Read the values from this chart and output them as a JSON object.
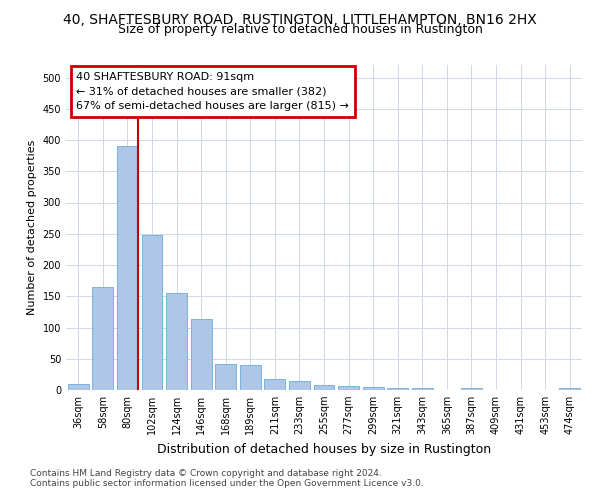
{
  "title": "40, SHAFTESBURY ROAD, RUSTINGTON, LITTLEHAMPTON, BN16 2HX",
  "subtitle": "Size of property relative to detached houses in Rustington",
  "xlabel": "Distribution of detached houses by size in Rustington",
  "ylabel": "Number of detached properties",
  "categories": [
    "36sqm",
    "58sqm",
    "80sqm",
    "102sqm",
    "124sqm",
    "146sqm",
    "168sqm",
    "189sqm",
    "211sqm",
    "233sqm",
    "255sqm",
    "277sqm",
    "299sqm",
    "321sqm",
    "343sqm",
    "365sqm",
    "387sqm",
    "409sqm",
    "431sqm",
    "453sqm",
    "474sqm"
  ],
  "values": [
    10,
    165,
    390,
    248,
    155,
    113,
    42,
    40,
    17,
    14,
    8,
    7,
    5,
    3,
    3,
    0,
    3,
    0,
    0,
    0,
    3
  ],
  "bar_color": "#aec6e8",
  "bar_edge_color": "#6aafd6",
  "background_color": "#ffffff",
  "grid_color": "#d0d8e8",
  "annotation_line1": "40 SHAFTESBURY ROAD: 91sqm",
  "annotation_line2": "← 31% of detached houses are smaller (382)",
  "annotation_line3": "67% of semi-detached houses are larger (815) →",
  "annotation_box_color": "#cc0000",
  "marker_line_color": "#cc0000",
  "ylim": [
    0,
    520
  ],
  "yticks": [
    0,
    50,
    100,
    150,
    200,
    250,
    300,
    350,
    400,
    450,
    500
  ],
  "footnote1": "Contains HM Land Registry data © Crown copyright and database right 2024.",
  "footnote2": "Contains public sector information licensed under the Open Government Licence v3.0.",
  "title_fontsize": 10,
  "subtitle_fontsize": 9,
  "xlabel_fontsize": 9,
  "ylabel_fontsize": 8,
  "tick_fontsize": 7,
  "annot_fontsize": 8,
  "footnote_fontsize": 6.5
}
